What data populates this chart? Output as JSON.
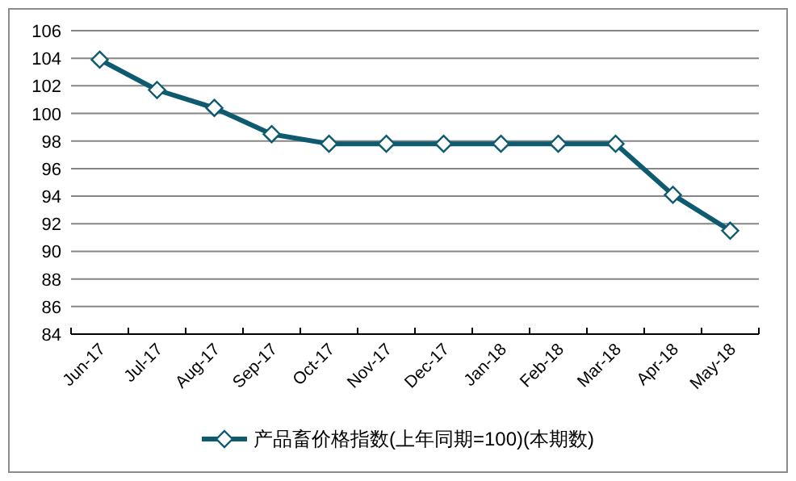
{
  "chart_data": {
    "type": "line",
    "categories": [
      "Jun-17",
      "Jul-17",
      "Aug-17",
      "Sep-17",
      "Oct-17",
      "Nov-17",
      "Dec-17",
      "Jan-18",
      "Feb-18",
      "Mar-18",
      "Apr-18",
      "May-18"
    ],
    "series": [
      {
        "name": "产品畜价格指数(上年同期=100)(本期数)",
        "color": "#0e5b70",
        "values": [
          103.9,
          101.7,
          100.4,
          98.5,
          97.8,
          97.8,
          97.8,
          97.8,
          97.8,
          97.8,
          94.1,
          91.5
        ]
      }
    ],
    "ylim": [
      84,
      106
    ],
    "yticks": [
      84,
      86,
      88,
      90,
      92,
      94,
      96,
      98,
      100,
      102,
      104,
      106
    ],
    "grid": "y",
    "legend": "bottom",
    "marker": "diamond",
    "line_style": "solid"
  }
}
